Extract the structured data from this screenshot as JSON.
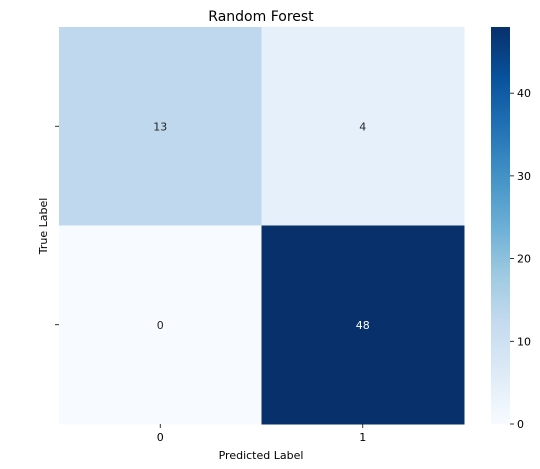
{
  "chart_data": {
    "type": "heatmap",
    "title": "Random Forest",
    "xlabel": "Predicted Label",
    "ylabel": "True Label",
    "x_categories": [
      "0",
      "1"
    ],
    "y_categories": [
      "0",
      "1"
    ],
    "matrix": [
      [
        13,
        4
      ],
      [
        0,
        48
      ]
    ],
    "annotations": [
      "13",
      "4",
      "0",
      "48"
    ],
    "colormap": "Blues",
    "color_range": [
      0,
      48
    ],
    "colorbar_ticks": [
      0,
      10,
      20,
      30,
      40
    ],
    "colorbar_tick_labels": [
      "0",
      "10",
      "20",
      "30",
      "40"
    ],
    "colors": {
      "min": "#f7fbff",
      "max": "#08306b",
      "low_text": "#262626",
      "high_text": "#ffffff"
    }
  }
}
